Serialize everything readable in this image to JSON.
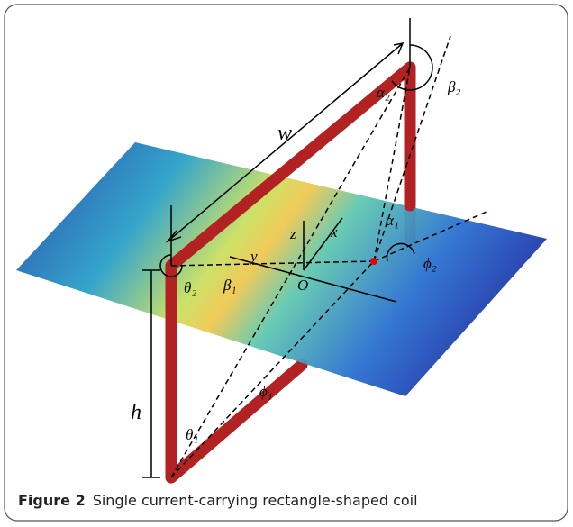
{
  "figure": {
    "labels": {
      "w": "w",
      "h": "h",
      "theta2": "θ₂",
      "beta1": "β₁",
      "theta1": "θ₁",
      "phi1": "ϕ₁",
      "phi2": "ϕ₂",
      "alpha1": "α₁",
      "alpha2": "α₂",
      "beta2": "β₂",
      "origin": "O",
      "x": "x",
      "y": "y",
      "z": "z"
    },
    "caption": {
      "label": "Figure 2",
      "text": "Single current-carrying rectangle-shaped coil"
    }
  }
}
